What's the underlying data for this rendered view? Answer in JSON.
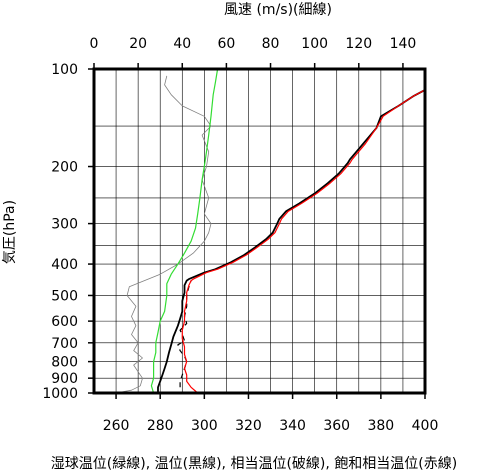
{
  "chart_data": {
    "type": "line",
    "top_axis": {
      "title": "風速 (m/s)(細線)",
      "range": [
        0,
        150
      ],
      "ticks": [
        0,
        20,
        40,
        60,
        80,
        100,
        120,
        140
      ]
    },
    "bottom_axis": {
      "title": "湿球温位(緑線), 温位(黒線), 相当温位(破線), 飽和相当温位(赤線)",
      "range": [
        250,
        400
      ],
      "ticks": [
        260,
        280,
        300,
        320,
        340,
        360,
        380,
        400
      ]
    },
    "y_axis": {
      "title": "気圧(hPa)",
      "scale": "log",
      "reversed": true,
      "range": [
        1000,
        100
      ],
      "ticks": [
        100,
        200,
        300,
        400,
        500,
        600,
        700,
        800,
        900,
        1000
      ],
      "minor_gridlines": [
        150,
        250,
        350
      ]
    },
    "vertical_gridlines_every": 10,
    "series": [
      {
        "axis": "top",
        "color": "#808080",
        "style": "thin",
        "points": [
          [
            10,
            1000
          ],
          [
            17,
            980
          ],
          [
            21,
            950
          ],
          [
            22,
            900
          ],
          [
            20,
            860
          ],
          [
            18,
            820
          ],
          [
            22,
            780
          ],
          [
            18,
            740
          ],
          [
            20,
            700
          ],
          [
            17,
            660
          ],
          [
            19,
            620
          ],
          [
            17,
            580
          ],
          [
            19,
            540
          ],
          [
            15,
            500
          ],
          [
            16,
            470
          ],
          [
            30,
            430
          ],
          [
            38,
            400
          ],
          [
            45,
            370
          ],
          [
            50,
            340
          ],
          [
            52,
            320
          ],
          [
            53,
            300
          ],
          [
            50,
            280
          ],
          [
            52,
            250
          ],
          [
            49,
            220
          ],
          [
            51,
            200
          ],
          [
            52,
            180
          ],
          [
            49,
            160
          ],
          [
            53,
            150
          ],
          [
            50,
            140
          ],
          [
            40,
            130
          ],
          [
            35,
            120
          ],
          [
            32,
            112
          ],
          [
            33,
            105
          ]
        ]
      },
      {
        "axis": "bottom",
        "color": "#33dd33",
        "style": "solid",
        "points": [
          [
            277,
            1000
          ],
          [
            276,
            950
          ],
          [
            277,
            900
          ],
          [
            277,
            850
          ],
          [
            277,
            800
          ],
          [
            278,
            750
          ],
          [
            278,
            700
          ],
          [
            279,
            650
          ],
          [
            280,
            600
          ],
          [
            282,
            560
          ],
          [
            283,
            500
          ],
          [
            283,
            460
          ],
          [
            285,
            430
          ],
          [
            288,
            400
          ],
          [
            291,
            370
          ],
          [
            294,
            340
          ],
          [
            296,
            310
          ],
          [
            297,
            280
          ],
          [
            298,
            250
          ],
          [
            299,
            220
          ],
          [
            300,
            200
          ],
          [
            301,
            180
          ],
          [
            302,
            160
          ],
          [
            303,
            140
          ],
          [
            304,
            120
          ],
          [
            305,
            110
          ],
          [
            306,
            100
          ]
        ]
      },
      {
        "axis": "bottom",
        "color": "#000000",
        "style": "solid",
        "points": [
          [
            279,
            1000
          ],
          [
            279,
            960
          ],
          [
            280,
            920
          ],
          [
            281,
            880
          ],
          [
            282,
            840
          ],
          [
            283,
            800
          ],
          [
            284,
            750
          ],
          [
            285,
            710
          ],
          [
            286,
            670
          ],
          [
            288,
            620
          ],
          [
            289,
            590
          ],
          [
            290,
            560
          ],
          [
            290,
            520
          ],
          [
            291,
            490
          ],
          [
            291,
            465
          ],
          [
            292,
            450
          ],
          [
            293,
            445
          ],
          [
            300,
            425
          ],
          [
            305,
            415
          ],
          [
            312,
            395
          ],
          [
            318,
            375
          ],
          [
            323,
            355
          ],
          [
            328,
            335
          ],
          [
            331,
            320
          ],
          [
            333,
            300
          ],
          [
            334,
            290
          ],
          [
            337,
            275
          ],
          [
            343,
            260
          ],
          [
            350,
            242
          ],
          [
            356,
            225
          ],
          [
            361,
            210
          ],
          [
            365,
            195
          ],
          [
            366,
            190
          ],
          [
            372,
            170
          ],
          [
            378,
            152
          ],
          [
            380,
            140
          ],
          [
            388,
            130
          ],
          [
            395,
            121
          ],
          [
            400,
            116
          ]
        ]
      },
      {
        "axis": "bottom",
        "color": "#000000",
        "style": "dashed",
        "points": [
          [
            289,
            960
          ],
          [
            289,
            920
          ],
          [
            290,
            880
          ],
          [
            291,
            840
          ],
          [
            292,
            800
          ],
          [
            291,
            770
          ],
          [
            289,
            740
          ],
          [
            288,
            710
          ],
          [
            291,
            690
          ],
          [
            290,
            660
          ],
          [
            289,
            640
          ],
          [
            292,
            610
          ],
          [
            291,
            580
          ],
          [
            292,
            540
          ],
          [
            292,
            500
          ],
          [
            293,
            470
          ],
          [
            294,
            450
          ]
        ]
      },
      {
        "axis": "bottom",
        "color": "#ff0000",
        "style": "solid",
        "points": [
          [
            297,
            1000
          ],
          [
            294,
            960
          ],
          [
            292,
            920
          ],
          [
            292,
            880
          ],
          [
            291,
            840
          ],
          [
            292,
            800
          ],
          [
            291,
            760
          ],
          [
            291,
            720
          ],
          [
            290,
            680
          ],
          [
            290,
            640
          ],
          [
            291,
            600
          ],
          [
            291,
            560
          ],
          [
            292,
            520
          ],
          [
            292,
            490
          ],
          [
            293,
            465
          ],
          [
            294,
            450
          ],
          [
            295,
            445
          ],
          [
            301,
            425
          ],
          [
            306,
            415
          ],
          [
            313,
            395
          ],
          [
            319,
            375
          ],
          [
            324,
            355
          ],
          [
            329,
            335
          ],
          [
            332,
            320
          ],
          [
            334,
            300
          ],
          [
            335,
            290
          ],
          [
            338,
            275
          ],
          [
            344,
            260
          ],
          [
            351,
            242
          ],
          [
            357,
            225
          ],
          [
            362,
            210
          ],
          [
            366,
            195
          ],
          [
            367,
            190
          ],
          [
            373,
            170
          ],
          [
            378,
            152
          ],
          [
            381,
            140
          ],
          [
            388,
            130
          ],
          [
            395,
            121
          ],
          [
            400,
            116
          ]
        ]
      }
    ]
  }
}
